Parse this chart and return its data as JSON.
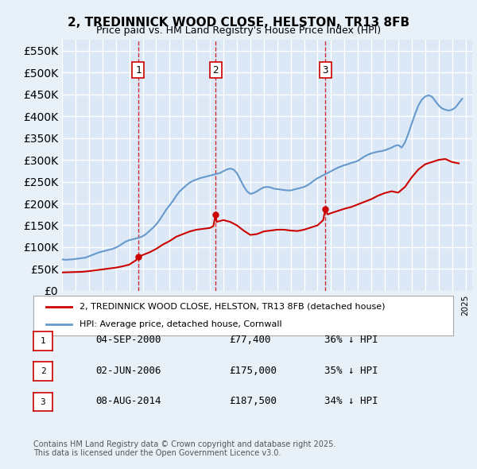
{
  "title": "2, TREDINNICK WOOD CLOSE, HELSTON, TR13 8FB",
  "subtitle": "Price paid vs. HM Land Registry's House Price Index (HPI)",
  "xlabel": "",
  "ylabel": "",
  "ylim": [
    0,
    575000
  ],
  "yticks": [
    0,
    50000,
    100000,
    150000,
    200000,
    250000,
    300000,
    350000,
    400000,
    450000,
    500000,
    550000
  ],
  "background_color": "#e8f0f8",
  "plot_bg_color": "#dce8f5",
  "grid_color": "#ffffff",
  "legend_label_red": "2, TREDINNICK WOOD CLOSE, HELSTON, TR13 8FB (detached house)",
  "legend_label_blue": "HPI: Average price, detached house, Cornwall",
  "red_color": "#cc0000",
  "blue_color": "#6699cc",
  "purchases": [
    {
      "date": 2000.67,
      "price": 77400,
      "label": "1"
    },
    {
      "date": 2006.42,
      "price": 175000,
      "label": "2"
    },
    {
      "date": 2014.58,
      "price": 187500,
      "label": "3"
    }
  ],
  "table_rows": [
    {
      "num": "1",
      "date": "04-SEP-2000",
      "price": "£77,400",
      "hpi": "36% ↓ HPI"
    },
    {
      "num": "2",
      "date": "02-JUN-2006",
      "price": "£175,000",
      "hpi": "35% ↓ HPI"
    },
    {
      "num": "3",
      "date": "08-AUG-2014",
      "price": "£187,500",
      "hpi": "34% ↓ HPI"
    }
  ],
  "copyright_text": "Contains HM Land Registry data © Crown copyright and database right 2025.\nThis data is licensed under the Open Government Licence v3.0.",
  "hpi_data": {
    "years": [
      1995.0,
      1995.25,
      1995.5,
      1995.75,
      1996.0,
      1996.25,
      1996.5,
      1996.75,
      1997.0,
      1997.25,
      1997.5,
      1997.75,
      1998.0,
      1998.25,
      1998.5,
      1998.75,
      1999.0,
      1999.25,
      1999.5,
      1999.75,
      2000.0,
      2000.25,
      2000.5,
      2000.75,
      2001.0,
      2001.25,
      2001.5,
      2001.75,
      2002.0,
      2002.25,
      2002.5,
      2002.75,
      2003.0,
      2003.25,
      2003.5,
      2003.75,
      2004.0,
      2004.25,
      2004.5,
      2004.75,
      2005.0,
      2005.25,
      2005.5,
      2005.75,
      2006.0,
      2006.25,
      2006.5,
      2006.75,
      2007.0,
      2007.25,
      2007.5,
      2007.75,
      2008.0,
      2008.25,
      2008.5,
      2008.75,
      2009.0,
      2009.25,
      2009.5,
      2009.75,
      2010.0,
      2010.25,
      2010.5,
      2010.75,
      2011.0,
      2011.25,
      2011.5,
      2011.75,
      2012.0,
      2012.25,
      2012.5,
      2012.75,
      2013.0,
      2013.25,
      2013.5,
      2013.75,
      2014.0,
      2014.25,
      2014.5,
      2014.75,
      2015.0,
      2015.25,
      2015.5,
      2015.75,
      2016.0,
      2016.25,
      2016.5,
      2016.75,
      2017.0,
      2017.25,
      2017.5,
      2017.75,
      2018.0,
      2018.25,
      2018.5,
      2018.75,
      2019.0,
      2019.25,
      2019.5,
      2019.75,
      2020.0,
      2020.25,
      2020.5,
      2020.75,
      2021.0,
      2021.25,
      2021.5,
      2021.75,
      2022.0,
      2022.25,
      2022.5,
      2022.75,
      2023.0,
      2023.25,
      2023.5,
      2023.75,
      2024.0,
      2024.25,
      2024.5,
      2024.75
    ],
    "values": [
      72000,
      71000,
      71500,
      72000,
      73000,
      74000,
      75000,
      76000,
      79000,
      82000,
      85000,
      88000,
      90000,
      92000,
      94000,
      96000,
      99000,
      103000,
      108000,
      113000,
      116000,
      118000,
      120000,
      122000,
      125000,
      130000,
      137000,
      144000,
      152000,
      162000,
      174000,
      186000,
      196000,
      206000,
      218000,
      228000,
      235000,
      242000,
      248000,
      252000,
      255000,
      258000,
      260000,
      262000,
      264000,
      266000,
      268000,
      270000,
      274000,
      278000,
      280000,
      278000,
      270000,
      255000,
      240000,
      228000,
      222000,
      224000,
      228000,
      233000,
      237000,
      238000,
      237000,
      234000,
      233000,
      232000,
      231000,
      230000,
      230000,
      232000,
      234000,
      236000,
      238000,
      242000,
      247000,
      253000,
      258000,
      262000,
      266000,
      270000,
      274000,
      278000,
      282000,
      285000,
      288000,
      290000,
      293000,
      295000,
      298000,
      303000,
      308000,
      312000,
      315000,
      317000,
      319000,
      320000,
      322000,
      325000,
      328000,
      332000,
      334000,
      328000,
      340000,
      360000,
      383000,
      405000,
      425000,
      438000,
      445000,
      448000,
      445000,
      435000,
      425000,
      418000,
      415000,
      413000,
      415000,
      420000,
      430000,
      440000
    ]
  },
  "red_data": {
    "years": [
      1995.0,
      1995.5,
      1996.0,
      1996.5,
      1997.0,
      1997.5,
      1998.0,
      1998.5,
      1999.0,
      1999.5,
      2000.0,
      2000.25,
      2000.5,
      2000.67,
      2000.75,
      2001.0,
      2001.5,
      2002.0,
      2002.5,
      2003.0,
      2003.5,
      2004.0,
      2004.5,
      2005.0,
      2005.5,
      2006.0,
      2006.25,
      2006.42,
      2006.5,
      2007.0,
      2007.5,
      2008.0,
      2008.5,
      2009.0,
      2009.5,
      2010.0,
      2010.5,
      2011.0,
      2011.5,
      2012.0,
      2012.5,
      2013.0,
      2013.5,
      2014.0,
      2014.42,
      2014.58,
      2014.75,
      2015.0,
      2015.5,
      2016.0,
      2016.5,
      2017.0,
      2017.5,
      2018.0,
      2018.5,
      2019.0,
      2019.5,
      2020.0,
      2020.5,
      2021.0,
      2021.5,
      2022.0,
      2022.5,
      2023.0,
      2023.5,
      2024.0,
      2024.5
    ],
    "values": [
      42000,
      42500,
      43000,
      43500,
      45000,
      47000,
      49000,
      51000,
      53000,
      56000,
      60000,
      65000,
      70000,
      77400,
      78000,
      82000,
      88000,
      96000,
      106000,
      114000,
      124000,
      130000,
      136000,
      140000,
      142000,
      144000,
      148000,
      175000,
      158000,
      162000,
      158000,
      150000,
      138000,
      128000,
      130000,
      136000,
      138000,
      140000,
      140000,
      138000,
      137000,
      140000,
      145000,
      150000,
      162000,
      187500,
      175000,
      178000,
      183000,
      188000,
      192000,
      198000,
      204000,
      210000,
      218000,
      224000,
      228000,
      225000,
      238000,
      260000,
      278000,
      290000,
      295000,
      300000,
      302000,
      295000,
      292000
    ]
  }
}
